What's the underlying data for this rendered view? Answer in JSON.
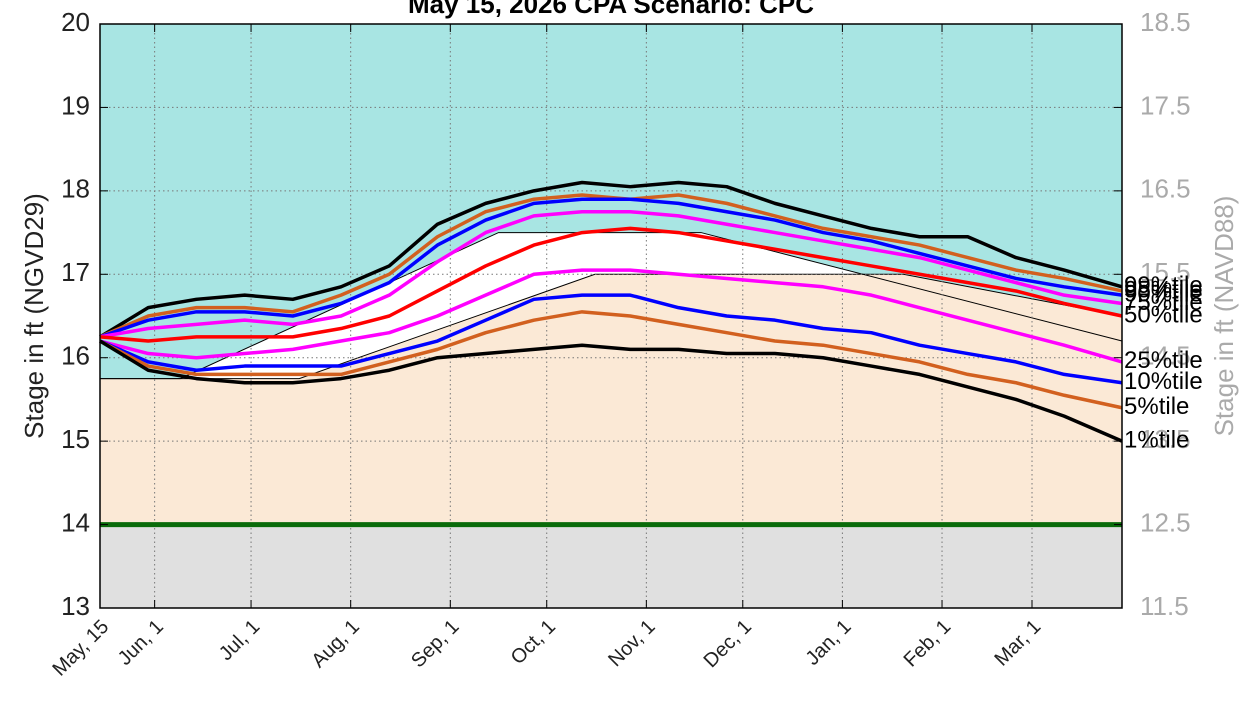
{
  "chart_data": {
    "type": "line",
    "title": "May 15, 2026  CPA Scenario: CPC",
    "y_label": "Stage in ft (NGVD29)",
    "y2_label": "Stage in ft (NAVD88)",
    "xlim": [
      0,
      318
    ],
    "xticks": [
      {
        "value": 0,
        "label": "May, 15"
      },
      {
        "value": 17,
        "label": "Jun, 1"
      },
      {
        "value": 47,
        "label": "Jul, 1"
      },
      {
        "value": 78,
        "label": "Aug, 1"
      },
      {
        "value": 109,
        "label": "Sep, 1"
      },
      {
        "value": 139,
        "label": "Oct, 1"
      },
      {
        "value": 170,
        "label": "Nov, 1"
      },
      {
        "value": 200,
        "label": "Dec, 1"
      },
      {
        "value": 231,
        "label": "Jan, 1"
      },
      {
        "value": 262,
        "label": "Feb, 1"
      },
      {
        "value": 290,
        "label": "Mar, 1"
      }
    ],
    "ylim": [
      13,
      20
    ],
    "yticks": [
      13,
      14,
      15,
      16,
      17,
      18,
      19,
      20
    ],
    "y2lim": [
      11.5,
      18.5
    ],
    "y2ticks": [
      11.5,
      12.5,
      13.5,
      14.5,
      15.5,
      16.5,
      17.5,
      18.5
    ],
    "grid": true,
    "zones": {
      "background_color": "#a8e5e3",
      "middle_color": "#ffffff",
      "lower_color": "#fbe9d6",
      "bottom_color": "#e0e0e0",
      "floor": 14,
      "floor_color": "#0a6b0a",
      "upper": {
        "x": [
          0,
          25,
          124,
          187,
          318
        ],
        "values": [
          15.75,
          15.75,
          17.5,
          17.5,
          16.2
        ]
      },
      "lower": {
        "x": [
          0,
          62,
          154,
          250,
          318
        ],
        "values": [
          15.75,
          15.75,
          17.0,
          17.0,
          16.5
        ]
      }
    },
    "x": [
      0,
      15,
      30,
      45,
      60,
      75,
      90,
      105,
      120,
      135,
      150,
      165,
      180,
      195,
      210,
      225,
      240,
      255,
      270,
      285,
      300,
      318
    ],
    "series": [
      {
        "name": "99%tile",
        "color": "#000000",
        "values": [
          16.25,
          16.6,
          16.7,
          16.75,
          16.7,
          16.85,
          17.1,
          17.6,
          17.85,
          18.0,
          18.1,
          18.05,
          18.1,
          18.05,
          17.85,
          17.7,
          17.55,
          17.45,
          17.45,
          17.2,
          17.05,
          16.85
        ]
      },
      {
        "name": "95%tile",
        "color": "#d2601f",
        "values": [
          16.25,
          16.5,
          16.6,
          16.6,
          16.55,
          16.75,
          17.0,
          17.45,
          17.75,
          17.9,
          17.95,
          17.9,
          17.95,
          17.85,
          17.7,
          17.55,
          17.45,
          17.35,
          17.2,
          17.05,
          16.95,
          16.8
        ]
      },
      {
        "name": "90%tile",
        "color": "#0000ff",
        "values": [
          16.25,
          16.45,
          16.55,
          16.55,
          16.5,
          16.65,
          16.9,
          17.35,
          17.65,
          17.85,
          17.9,
          17.9,
          17.85,
          17.75,
          17.65,
          17.5,
          17.4,
          17.25,
          17.1,
          16.95,
          16.85,
          16.75
        ]
      },
      {
        "name": "75%tile",
        "color": "#ff00ff",
        "values": [
          16.25,
          16.35,
          16.4,
          16.45,
          16.4,
          16.5,
          16.75,
          17.15,
          17.5,
          17.7,
          17.75,
          17.75,
          17.7,
          17.6,
          17.5,
          17.4,
          17.3,
          17.2,
          17.05,
          16.9,
          16.75,
          16.65
        ]
      },
      {
        "name": "50%tile",
        "color": "#ff0000",
        "values": [
          16.25,
          16.2,
          16.25,
          16.25,
          16.25,
          16.35,
          16.5,
          16.8,
          17.1,
          17.35,
          17.5,
          17.55,
          17.5,
          17.4,
          17.3,
          17.2,
          17.1,
          17.0,
          16.9,
          16.8,
          16.65,
          16.5
        ]
      },
      {
        "name": "25%tile",
        "color": "#ff00ff",
        "values": [
          16.2,
          16.05,
          16.0,
          16.05,
          16.1,
          16.2,
          16.3,
          16.5,
          16.75,
          17.0,
          17.05,
          17.05,
          17.0,
          16.95,
          16.9,
          16.85,
          16.75,
          16.6,
          16.45,
          16.3,
          16.15,
          15.95
        ]
      },
      {
        "name": "10%tile",
        "color": "#0000ff",
        "values": [
          16.2,
          15.95,
          15.85,
          15.9,
          15.9,
          15.9,
          16.05,
          16.2,
          16.45,
          16.7,
          16.75,
          16.75,
          16.6,
          16.5,
          16.45,
          16.35,
          16.3,
          16.15,
          16.05,
          15.95,
          15.8,
          15.7
        ]
      },
      {
        "name": "5%tile",
        "color": "#d2601f",
        "values": [
          16.2,
          15.9,
          15.8,
          15.8,
          15.8,
          15.8,
          15.95,
          16.1,
          16.3,
          16.45,
          16.55,
          16.5,
          16.4,
          16.3,
          16.2,
          16.15,
          16.05,
          15.95,
          15.8,
          15.7,
          15.55,
          15.4
        ]
      },
      {
        "name": "1%tile",
        "color": "#000000",
        "values": [
          16.2,
          15.85,
          15.75,
          15.7,
          15.7,
          15.75,
          15.85,
          16.0,
          16.05,
          16.1,
          16.15,
          16.1,
          16.1,
          16.05,
          16.05,
          16.0,
          15.9,
          15.8,
          15.65,
          15.5,
          15.3,
          15.0
        ]
      }
    ]
  }
}
